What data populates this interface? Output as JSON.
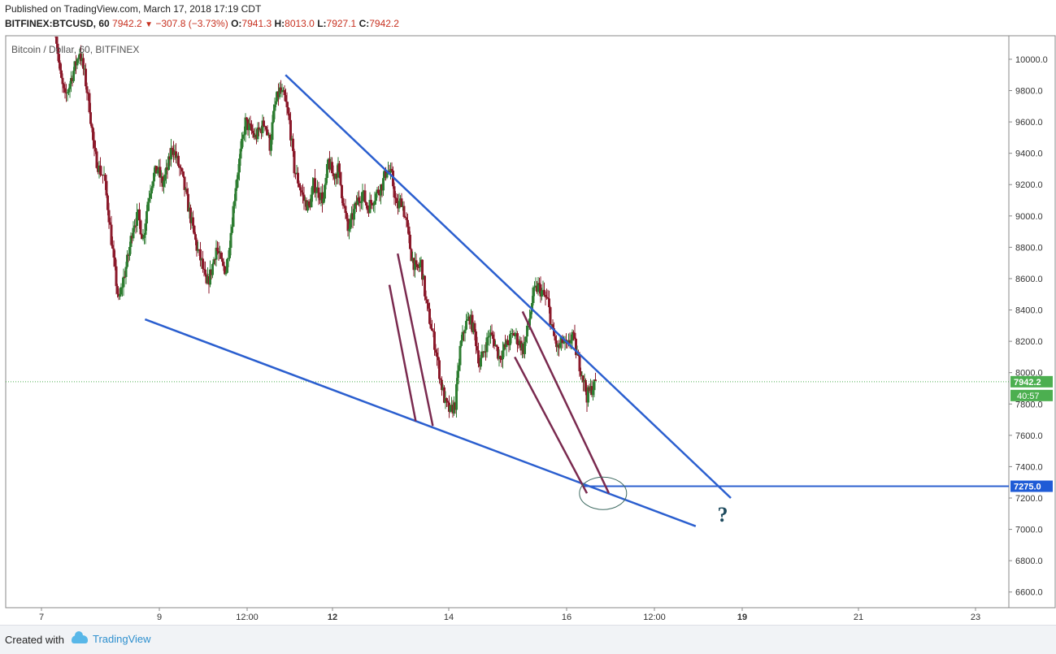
{
  "header": {
    "published": "Published on TradingView.com, March 17, 2018 17:19 CDT",
    "symbol": "BITFINEX:BTCUSD, 60",
    "last": "7942.2",
    "change": "−307.8 (−3.73%)",
    "o_label": "O:",
    "o": "7941.3",
    "h_label": "H:",
    "h": "8013.0",
    "l_label": "L:",
    "l": "7927.1",
    "c_label": "C:",
    "c": "7942.2"
  },
  "chart_title": "Bitcoin / Dollar, 60, BITFINEX",
  "footer": {
    "created_with": "Created with",
    "brand": "TradingView"
  },
  "colors": {
    "up": "#2e7d32",
    "down": "#8b1a2b",
    "trend": "#2b5fcf",
    "channel": "#7a2a4f",
    "price_tag": "#4caf50",
    "level_tag": "#1f5bd6"
  },
  "chart_data": {
    "type": "candlestick",
    "ylim": [
      6500,
      10150
    ],
    "y_ticks": [
      6600,
      6800,
      7000,
      7200,
      7400,
      7600,
      7800,
      8000,
      8200,
      8400,
      8600,
      8800,
      9000,
      9200,
      9400,
      9600,
      9800,
      10000
    ],
    "x_ticks": [
      "7",
      "9",
      "12:00",
      "12",
      "14",
      "16",
      "12:00",
      "19",
      "21",
      "23"
    ],
    "x_ticks_bold": [
      false,
      false,
      false,
      true,
      false,
      false,
      false,
      true,
      false,
      false
    ],
    "current_price": "7942.2",
    "countdown": "40:57",
    "level": "7275.0",
    "question": "?",
    "path_points": [
      [
        8,
        10200
      ],
      [
        9,
        9900
      ],
      [
        10,
        9750
      ],
      [
        11,
        9850
      ],
      [
        12,
        9950
      ],
      [
        13,
        10050
      ],
      [
        14,
        9900
      ],
      [
        15,
        9700
      ],
      [
        16,
        9400
      ],
      [
        17,
        9300
      ],
      [
        18,
        9250
      ],
      [
        19,
        9000
      ],
      [
        20,
        8700
      ],
      [
        21,
        8450
      ],
      [
        22,
        8600
      ],
      [
        23,
        8750
      ],
      [
        24,
        8950
      ],
      [
        25,
        9000
      ],
      [
        26,
        8850
      ],
      [
        27,
        9100
      ],
      [
        28,
        9250
      ],
      [
        29,
        9300
      ],
      [
        30,
        9200
      ],
      [
        31,
        9300
      ],
      [
        32,
        9450
      ],
      [
        33,
        9350
      ],
      [
        34,
        9250
      ],
      [
        35,
        9100
      ],
      [
        36,
        8950
      ],
      [
        37,
        8800
      ],
      [
        38,
        8700
      ],
      [
        39,
        8550
      ],
      [
        40,
        8650
      ],
      [
        41,
        8800
      ],
      [
        42,
        8700
      ],
      [
        43,
        8650
      ],
      [
        44,
        8900
      ],
      [
        45,
        9200
      ],
      [
        46,
        9400
      ],
      [
        47,
        9600
      ],
      [
        48,
        9550
      ],
      [
        49,
        9500
      ],
      [
        50,
        9550
      ],
      [
        51,
        9600
      ],
      [
        52,
        9450
      ],
      [
        53,
        9700
      ],
      [
        54,
        9800
      ],
      [
        55,
        9750
      ],
      [
        56,
        9600
      ],
      [
        57,
        9300
      ],
      [
        58,
        9200
      ],
      [
        59,
        9100
      ],
      [
        60,
        9050
      ],
      [
        61,
        9200
      ],
      [
        62,
        9150
      ],
      [
        63,
        9100
      ],
      [
        64,
        9350
      ],
      [
        65,
        9250
      ],
      [
        66,
        9300
      ],
      [
        67,
        9100
      ],
      [
        68,
        8900
      ],
      [
        69,
        9000
      ],
      [
        70,
        9100
      ],
      [
        71,
        9150
      ],
      [
        72,
        9050
      ],
      [
        73,
        9100
      ],
      [
        74,
        9150
      ],
      [
        75,
        9200
      ],
      [
        76,
        9300
      ],
      [
        77,
        9250
      ],
      [
        78,
        9050
      ],
      [
        79,
        9100
      ],
      [
        80,
        8950
      ],
      [
        81,
        8750
      ],
      [
        82,
        8650
      ],
      [
        83,
        8700
      ],
      [
        84,
        8450
      ],
      [
        85,
        8300
      ],
      [
        86,
        8150
      ],
      [
        87,
        7950
      ],
      [
        88,
        7800
      ],
      [
        89,
        7750
      ],
      [
        90,
        7800
      ],
      [
        91,
        8150
      ],
      [
        92,
        8300
      ],
      [
        93,
        8350
      ],
      [
        94,
        8250
      ],
      [
        95,
        8050
      ],
      [
        96,
        8150
      ],
      [
        97,
        8250
      ],
      [
        98,
        8200
      ],
      [
        99,
        8100
      ],
      [
        100,
        8150
      ],
      [
        101,
        8200
      ],
      [
        102,
        8250
      ],
      [
        103,
        8200
      ],
      [
        104,
        8150
      ],
      [
        105,
        8300
      ],
      [
        106,
        8500
      ],
      [
        107,
        8550
      ],
      [
        108,
        8500
      ],
      [
        109,
        8450
      ],
      [
        110,
        8250
      ],
      [
        111,
        8150
      ],
      [
        112,
        8200
      ],
      [
        113,
        8150
      ],
      [
        114,
        8250
      ],
      [
        115,
        8100
      ],
      [
        116,
        8000
      ],
      [
        117,
        7850
      ],
      [
        118,
        7900
      ],
      [
        119,
        7942.2
      ]
    ],
    "annotations": [
      {
        "type": "trendline",
        "color": "trend",
        "from": [
          55.2,
          9900
        ],
        "to": [
          146.5,
          7200
        ]
      },
      {
        "type": "trendline",
        "color": "trend",
        "from": [
          26.4,
          8340
        ],
        "to": [
          139.3,
          7020
        ]
      },
      {
        "type": "hline",
        "color": "trend",
        "from_x": 116.4,
        "price": 7275
      },
      {
        "type": "trendline",
        "color": "channel",
        "from": [
          76.5,
          8560
        ],
        "to": [
          81.9,
          7690
        ]
      },
      {
        "type": "trendline",
        "color": "channel",
        "from": [
          78.2,
          8760
        ],
        "to": [
          85.4,
          7660
        ]
      },
      {
        "type": "trendline",
        "color": "channel",
        "from": [
          102.2,
          8100
        ],
        "to": [
          117.0,
          7230
        ]
      },
      {
        "type": "trendline",
        "color": "channel",
        "from": [
          103.8,
          8390
        ],
        "to": [
          121.5,
          7230
        ]
      }
    ]
  }
}
